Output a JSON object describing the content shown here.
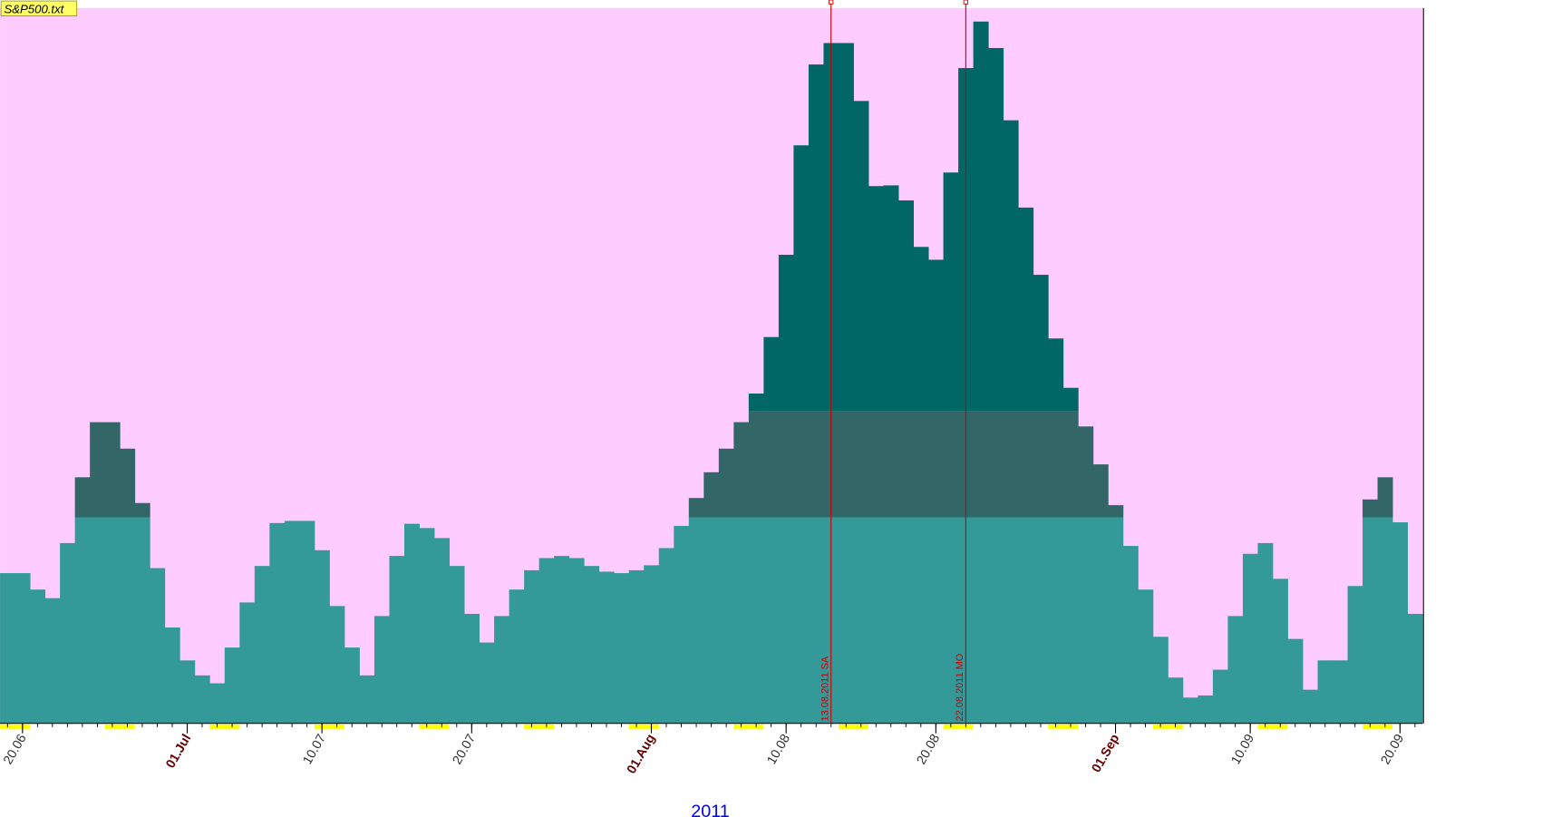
{
  "chart_data": {
    "type": "bar",
    "title": "S&P500.txt",
    "xlabel": "2011",
    "values": [
      21.0,
      21.0,
      18.7,
      17.5,
      25.2,
      34.4,
      42.1,
      42.1,
      38.4,
      30.8,
      21.7,
      13.4,
      8.8,
      6.7,
      5.6,
      10.6,
      16.9,
      22.0,
      28.0,
      28.3,
      28.3,
      24.2,
      16.4,
      10.6,
      6.7,
      15.0,
      23.4,
      27.9,
      27.3,
      25.9,
      22.0,
      15.3,
      11.3,
      15.0,
      18.7,
      21.4,
      23.1,
      23.4,
      23.1,
      22.0,
      21.2,
      21.0,
      21.4,
      22.1,
      24.5,
      27.6,
      31.5,
      35.1,
      38.4,
      42.1,
      46.1,
      54.0,
      65.5,
      80.8,
      92.1,
      95.1,
      95.1,
      87.0,
      75.1,
      75.2,
      73.1,
      66.6,
      64.8,
      77.0,
      91.6,
      98.1,
      94.4,
      84.3,
      72.1,
      62.7,
      53.8,
      46.9,
      41.5,
      36.2,
      30.5,
      24.8,
      18.7,
      12.1,
      6.4,
      3.6,
      3.9,
      7.5,
      15.0,
      23.7,
      25.2,
      20.2,
      11.8,
      4.7,
      8.8,
      8.8,
      19.2,
      31.3,
      34.4,
      28.1,
      15.3
    ],
    "ylim": [
      0,
      100
    ],
    "bands": [
      {
        "upto": 28.8,
        "color": "#339999"
      },
      {
        "upto": 43.6,
        "color": "#336666"
      },
      {
        "upto": 100,
        "color": "#006666"
      }
    ],
    "background": "#ffccff",
    "xticks": [
      {
        "value": 1,
        "label": "20.06"
      },
      {
        "value": 12,
        "label": "01.Jul",
        "major": true
      },
      {
        "value": 21,
        "label": "10.07"
      },
      {
        "value": 31,
        "label": "20.07"
      },
      {
        "value": 43,
        "label": "01.Aug",
        "major": true
      },
      {
        "value": 52,
        "label": "10.08"
      },
      {
        "value": 62,
        "label": "20.08"
      },
      {
        "value": 74,
        "label": "01.Sep",
        "major": true
      },
      {
        "value": 83,
        "label": "10.09"
      },
      {
        "value": 93,
        "label": "20.09"
      }
    ],
    "markers": [
      {
        "value": 55,
        "label": "13.08.2011 SA"
      },
      {
        "value": 64,
        "label": "22.08.2011 MO"
      }
    ],
    "marker_color": "#cc0000"
  }
}
